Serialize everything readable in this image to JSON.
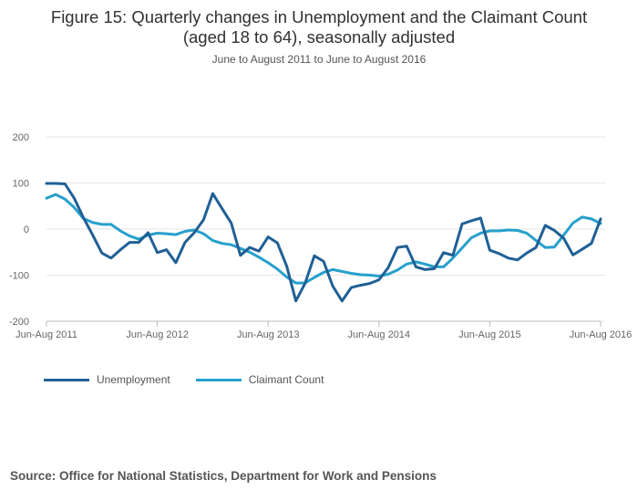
{
  "title_line1": "Figure 15: Quarterly changes in Unemployment and the Claimant Count",
  "title_line2": "(aged 18 to 64), seasonally adjusted",
  "subtitle": "June to August 2011 to June to August 2016",
  "source": "Source: Office for National Statistics, Department for Work and Pensions",
  "colors": {
    "unemployment": "#206095",
    "claimant": "#27A0CC",
    "grid": "#e6e6e6",
    "axis": "#bbbbbb"
  },
  "chart_data": {
    "type": "line",
    "title": "Figure 15: Quarterly changes in Unemployment and the Claimant Count (aged 18 to 64), seasonally adjusted",
    "subtitle": "June to August 2011 to June to August 2016",
    "xlabel": "",
    "ylabel": "",
    "ylim": [
      -200,
      200
    ],
    "yticks": [
      200,
      100,
      0,
      -100,
      -200
    ],
    "xtick_labels": [
      "Jun-Aug 2011",
      "Jun-Aug 2012",
      "Jun-Aug 2013",
      "Jun-Aug 2014",
      "Jun-Aug 2015",
      "Jun-Aug 2016"
    ],
    "xtick_index": [
      0,
      12,
      24,
      36,
      48,
      60
    ],
    "grid": true,
    "legend_position": "bottom-left",
    "series": [
      {
        "name": "Unemployment",
        "values": [
          99,
          99,
          98,
          67,
          25,
          -13,
          -52,
          -63,
          -45,
          -29,
          -29,
          -8,
          -51,
          -45,
          -73,
          -29,
          -8,
          20,
          77,
          45,
          13,
          -57,
          -40,
          -48,
          -17,
          -30,
          -80,
          -156,
          -118,
          -58,
          -70,
          -124,
          -156,
          -127,
          -122,
          -118,
          -110,
          -84,
          -40,
          -37,
          -82,
          -88,
          -86,
          -51,
          -57,
          11,
          18,
          24,
          -46,
          -53,
          -63,
          -67,
          -52,
          -40,
          8,
          -3,
          -20,
          -56,
          -44,
          -31,
          22
        ]
      },
      {
        "name": "Claimant Count",
        "values": [
          67,
          75,
          65,
          47,
          23,
          14,
          10,
          10,
          -4,
          -15,
          -22,
          -13,
          -9,
          -10,
          -12,
          -5,
          -2,
          -10,
          -25,
          -31,
          -34,
          -42,
          -50,
          -61,
          -73,
          -87,
          -104,
          -117,
          -117,
          -105,
          -94,
          -88,
          -92,
          -96,
          -99,
          -100,
          -102,
          -98,
          -89,
          -76,
          -71,
          -76,
          -82,
          -82,
          -63,
          -41,
          -19,
          -9,
          -4,
          -4,
          -2,
          -3,
          -9,
          -25,
          -40,
          -39,
          -13,
          13,
          26,
          22,
          12
        ]
      }
    ]
  }
}
